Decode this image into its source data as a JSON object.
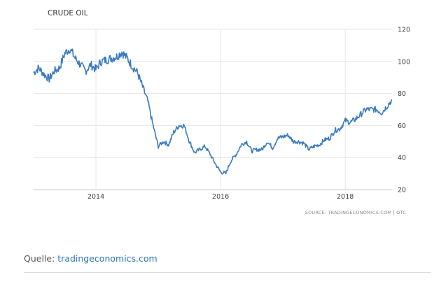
{
  "chart_data": {
    "type": "line",
    "title": "CRUDE OIL",
    "source": "SOURCE: TRADINGECONOMICS.COM | OTC",
    "ylim": [
      20,
      120
    ],
    "yticks": [
      20,
      40,
      60,
      80,
      100,
      120
    ],
    "xlim": [
      "2013-01",
      "2018-10"
    ],
    "xticks": [
      "2014",
      "2016",
      "2018"
    ],
    "grid": true,
    "x": [
      "2013-01",
      "2013-02",
      "2013-03",
      "2013-04",
      "2013-05",
      "2013-06",
      "2013-07",
      "2013-08",
      "2013-09",
      "2013-10",
      "2013-11",
      "2013-12",
      "2014-01",
      "2014-02",
      "2014-03",
      "2014-04",
      "2014-05",
      "2014-06",
      "2014-07",
      "2014-08",
      "2014-09",
      "2014-10",
      "2014-11",
      "2014-12",
      "2015-01",
      "2015-02",
      "2015-03",
      "2015-04",
      "2015-05",
      "2015-06",
      "2015-07",
      "2015-08",
      "2015-09",
      "2015-10",
      "2015-11",
      "2015-12",
      "2016-01",
      "2016-02",
      "2016-03",
      "2016-04",
      "2016-05",
      "2016-06",
      "2016-07",
      "2016-08",
      "2016-09",
      "2016-10",
      "2016-11",
      "2016-12",
      "2017-01",
      "2017-02",
      "2017-03",
      "2017-04",
      "2017-05",
      "2017-06",
      "2017-07",
      "2017-08",
      "2017-09",
      "2017-10",
      "2017-11",
      "2017-12",
      "2018-01",
      "2018-02",
      "2018-03",
      "2018-04",
      "2018-05",
      "2018-06",
      "2018-07",
      "2018-08",
      "2018-09",
      "2018-10"
    ],
    "series": [
      {
        "values": [
          93,
          96,
          92,
          89,
          94,
          96,
          105,
          108,
          102,
          98,
          94,
          98,
          95,
          100,
          101,
          102,
          103,
          106,
          102,
          97,
          93,
          84,
          75,
          60,
          47,
          50,
          48,
          56,
          60,
          60,
          50,
          43,
          45,
          47,
          42,
          36,
          31,
          30,
          38,
          42,
          48,
          50,
          44,
          45,
          45,
          50,
          46,
          52,
          53,
          54,
          50,
          50,
          49,
          45,
          47,
          48,
          51,
          52,
          57,
          58,
          63,
          62,
          64,
          67,
          70,
          70,
          70,
          68,
          72,
          76
        ],
        "color": "#3a7bc0"
      }
    ]
  },
  "caption": {
    "prefix": "Quelle: ",
    "link": "tradingeconomics.com"
  }
}
